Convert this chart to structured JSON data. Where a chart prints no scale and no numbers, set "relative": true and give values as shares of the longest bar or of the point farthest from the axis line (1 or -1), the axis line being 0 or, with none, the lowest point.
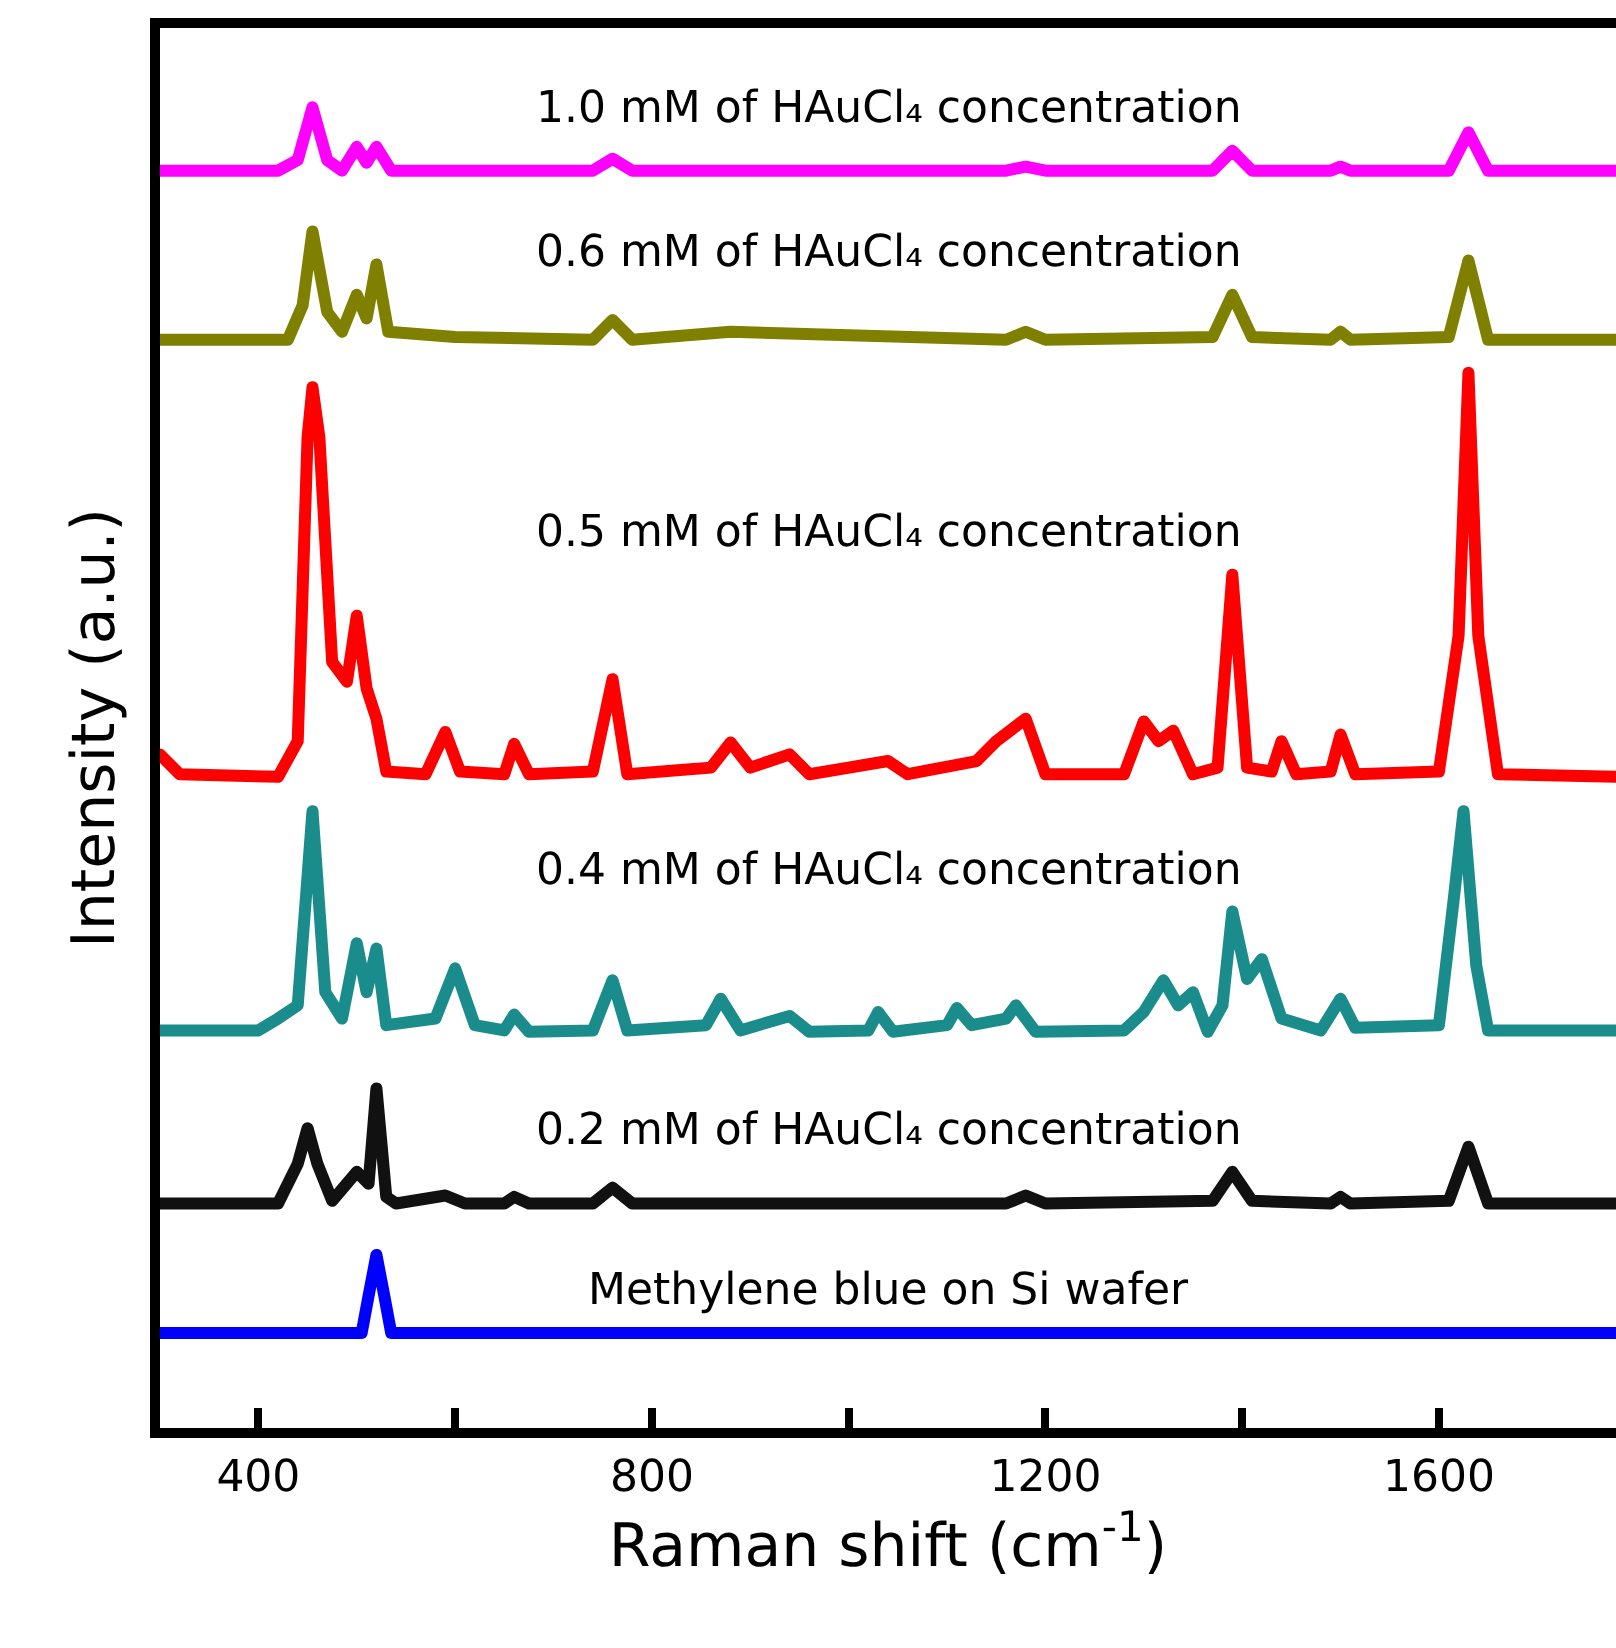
{
  "chart_data": {
    "type": "line",
    "relative": true,
    "xlabel": "Raman shift (cm$^{-1}$)",
    "ylabel": "Intensity (a.u.)",
    "xlim": [
      300,
      1780
    ],
    "xticks": [
      400,
      {
        "value": 600,
        "label": null
      },
      800,
      {
        "value": 1000,
        "label": null
      },
      1200,
      {
        "value": 1400,
        "label": null
      },
      1600
    ],
    "grid": false,
    "legend": false,
    "marker": "none",
    "line_style": "solid",
    "series": [
      {
        "name": "1.0 mM of HAuCl₄ concentration",
        "color": "#ff00ff",
        "x": [
          300,
          420,
          440,
          455,
          470,
          485,
          500,
          510,
          520,
          535,
          740,
          760,
          780,
          1160,
          1180,
          1200,
          1370,
          1390,
          1410,
          1490,
          1500,
          1510,
          1610,
          1630,
          1650,
          1780
        ],
        "values": [
          0.952,
          0.952,
          0.96,
          1.0,
          0.96,
          0.952,
          0.97,
          0.958,
          0.97,
          0.952,
          0.952,
          0.961,
          0.952,
          0.952,
          0.955,
          0.952,
          0.952,
          0.967,
          0.952,
          0.952,
          0.955,
          0.952,
          0.952,
          0.981,
          0.952,
          0.952
        ]
      },
      {
        "name": "0.6 mM of HAuCl₄ concentration",
        "color": "#808000",
        "x": [
          300,
          430,
          445,
          455,
          470,
          485,
          500,
          510,
          520,
          532,
          600,
          740,
          760,
          780,
          880,
          1160,
          1180,
          1200,
          1370,
          1390,
          1410,
          1490,
          1500,
          1510,
          1610,
          1630,
          1650,
          1780
        ],
        "values": [
          0.824,
          0.824,
          0.85,
          0.906,
          0.845,
          0.83,
          0.858,
          0.84,
          0.881,
          0.83,
          0.826,
          0.824,
          0.839,
          0.824,
          0.83,
          0.824,
          0.83,
          0.824,
          0.826,
          0.858,
          0.826,
          0.824,
          0.83,
          0.824,
          0.826,
          0.884,
          0.824,
          0.824
        ]
      },
      {
        "name": "0.5 mM of HAuCl₄ concentration",
        "color": "#ff0000",
        "x": [
          300,
          320,
          420,
          440,
          450,
          455,
          462,
          475,
          490,
          500,
          510,
          520,
          530,
          570,
          590,
          605,
          650,
          660,
          675,
          740,
          760,
          775,
          860,
          880,
          900,
          940,
          960,
          1040,
          1060,
          1130,
          1150,
          1180,
          1200,
          1280,
          1300,
          1315,
          1330,
          1350,
          1375,
          1390,
          1405,
          1430,
          1440,
          1455,
          1490,
          1500,
          1515,
          1600,
          1620,
          1630,
          1640,
          1660,
          1780
        ],
        "values": [
          0.51,
          0.495,
          0.493,
          0.52,
          0.75,
          0.788,
          0.75,
          0.58,
          0.565,
          0.615,
          0.56,
          0.537,
          0.497,
          0.495,
          0.527,
          0.497,
          0.495,
          0.518,
          0.495,
          0.497,
          0.567,
          0.495,
          0.5,
          0.519,
          0.5,
          0.51,
          0.495,
          0.505,
          0.495,
          0.505,
          0.52,
          0.537,
          0.495,
          0.495,
          0.535,
          0.52,
          0.528,
          0.495,
          0.5,
          0.646,
          0.5,
          0.497,
          0.52,
          0.495,
          0.497,
          0.525,
          0.495,
          0.497,
          0.6,
          0.799,
          0.6,
          0.495,
          0.493
        ]
      },
      {
        "name": "0.4 mM of HAuCl₄ concentration",
        "color": "#1a8c8c",
        "x": [
          300,
          400,
          420,
          440,
          455,
          468,
          485,
          500,
          510,
          520,
          530,
          580,
          600,
          620,
          650,
          660,
          675,
          740,
          760,
          775,
          855,
          870,
          890,
          940,
          960,
          1020,
          1030,
          1045,
          1100,
          1110,
          1125,
          1160,
          1170,
          1190,
          1280,
          1300,
          1320,
          1335,
          1350,
          1365,
          1380,
          1390,
          1405,
          1420,
          1440,
          1480,
          1500,
          1515,
          1600,
          1615,
          1625,
          1638,
          1650,
          1780
        ],
        "values": [
          0.301,
          0.301,
          0.31,
          0.32,
          0.467,
          0.33,
          0.31,
          0.367,
          0.33,
          0.363,
          0.305,
          0.31,
          0.348,
          0.305,
          0.301,
          0.313,
          0.3,
          0.301,
          0.339,
          0.301,
          0.305,
          0.325,
          0.301,
          0.312,
          0.3,
          0.301,
          0.315,
          0.3,
          0.305,
          0.318,
          0.305,
          0.31,
          0.32,
          0.3,
          0.301,
          0.315,
          0.339,
          0.32,
          0.33,
          0.3,
          0.32,
          0.391,
          0.34,
          0.355,
          0.31,
          0.301,
          0.325,
          0.303,
          0.305,
          0.4,
          0.467,
          0.35,
          0.301,
          0.301
        ]
      },
      {
        "name": "0.2 mM of HAuCl₄ concentration",
        "color": "#111111",
        "x": [
          300,
          420,
          440,
          450,
          460,
          475,
          500,
          512,
          520,
          530,
          540,
          590,
          610,
          650,
          660,
          675,
          740,
          760,
          780,
          1160,
          1180,
          1200,
          1370,
          1390,
          1410,
          1490,
          1500,
          1510,
          1610,
          1630,
          1650,
          1780
        ],
        "values": [
          0.17,
          0.17,
          0.2,
          0.227,
          0.2,
          0.172,
          0.194,
          0.185,
          0.257,
          0.175,
          0.17,
          0.176,
          0.17,
          0.17,
          0.175,
          0.17,
          0.17,
          0.182,
          0.17,
          0.17,
          0.176,
          0.17,
          0.172,
          0.194,
          0.172,
          0.17,
          0.175,
          0.17,
          0.172,
          0.213,
          0.17,
          0.17
        ]
      },
      {
        "name": "Methylene blue on Si wafer",
        "color": "#0000ff",
        "x": [
          300,
          505,
          512,
          520,
          528,
          535,
          1780
        ],
        "values": [
          0.072,
          0.072,
          0.1,
          0.131,
          0.1,
          0.072,
          0.072
        ]
      }
    ]
  }
}
